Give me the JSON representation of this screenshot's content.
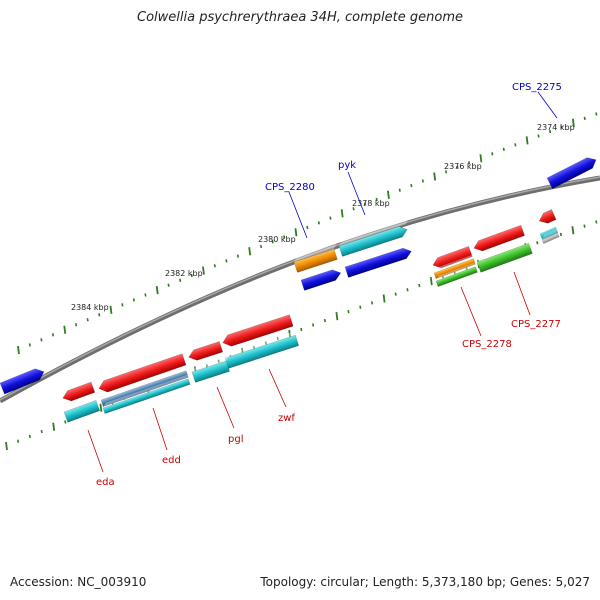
{
  "title": "Colwellia psychrerythraea 34H, complete genome",
  "accession": "Accession: NC_003910",
  "summary": "Topology: circular; Length: 5,373,180 bp; Genes: 5,027",
  "colors": {
    "backbone": "#7a7a7a",
    "tick": "#2e7d1e",
    "forward_label": "#0000cc",
    "reverse_label": "#cc0000",
    "cds_red": "#ee1c1c",
    "cds_blue": "#1111dd",
    "cds_cyan": "#1cbfc9",
    "cds_orange": "#f08a00",
    "cds_green": "#3bbf2a",
    "cds_steel": "#4a7fb0"
  },
  "scale": {
    "labels": [
      "2374 kbp",
      "2376 kbp",
      "2378 kbp",
      "2380 kbp",
      "2382 kbp",
      "2384 kbp"
    ]
  },
  "gene_labels": {
    "forward": [
      "CPS_2275",
      "pyk",
      "CPS_2280"
    ],
    "reverse": [
      "CPS_2277",
      "CPS_2278",
      "zwf",
      "pgl",
      "edd",
      "eda"
    ]
  }
}
